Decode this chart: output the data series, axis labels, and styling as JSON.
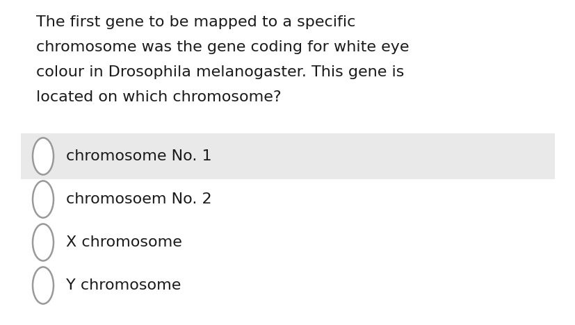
{
  "question_lines": [
    "The first gene to be mapped to a specific",
    "chromosome was the gene coding for white eye",
    "colour in Drosophila melanogaster. This gene is",
    "located on which chromosome?"
  ],
  "options": [
    "chromosome No. 1",
    "chromosoem No. 2",
    "X chromosome",
    "Y chromosome"
  ],
  "highlighted_option": 0,
  "bg_color": "#ffffff",
  "highlight_color": "#e9e9e9",
  "text_color": "#1a1a1a",
  "question_font_size": 16,
  "option_font_size": 16,
  "circle_edge_color": "#999999",
  "circle_fill": "#ffffff",
  "fig_width": 8.28,
  "fig_height": 4.68,
  "dpi": 100
}
